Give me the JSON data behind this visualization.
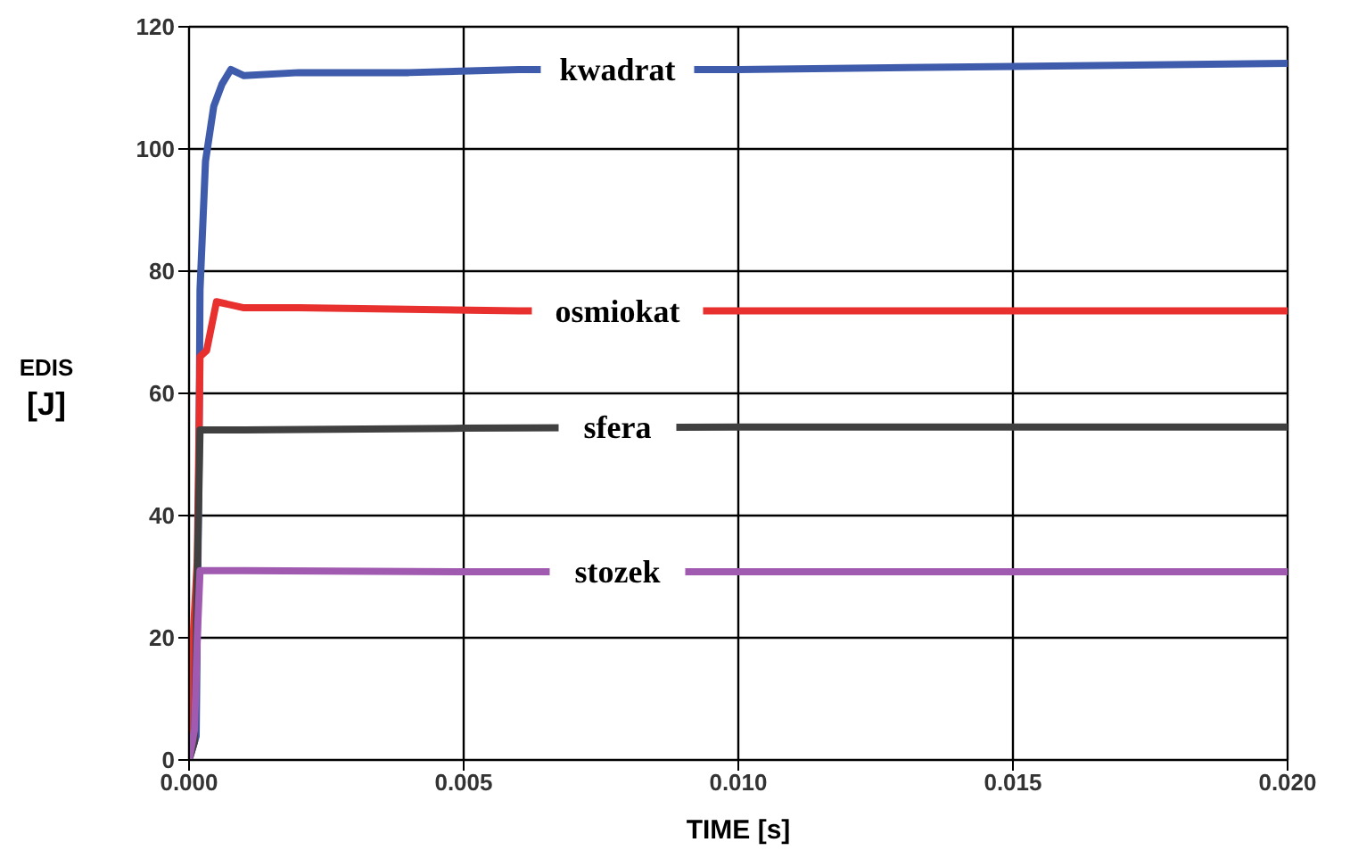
{
  "chart_data": {
    "type": "line",
    "xlabel": "TIME [s]",
    "ylabel": "EDIS [J]",
    "xlim": [
      0,
      0.02
    ],
    "xticks": [
      {
        "value": 0,
        "label": "0.000"
      },
      {
        "value": 0.005,
        "label": "0.005"
      },
      {
        "value": 0.01,
        "label": "0.010"
      },
      {
        "value": 0.015,
        "label": "0.015"
      },
      {
        "value": 0.02,
        "label": "0.020"
      }
    ],
    "ylim": [
      0,
      120
    ],
    "yticks": [
      0,
      20,
      40,
      60,
      80,
      100,
      120
    ],
    "grid": true,
    "legend": false,
    "marker": "none",
    "line_style": "solid",
    "series": [
      {
        "name": "kwadrat",
        "color": "#3f5bab",
        "x": [
          0,
          0.00013,
          0.00018,
          0.0002,
          0.0003,
          0.00045,
          0.0006,
          0.00076,
          0.001,
          0.002,
          0.004,
          0.006,
          0.01,
          0.015,
          0.02
        ],
        "values": [
          0,
          3.9,
          48,
          77,
          98,
          107,
          110.6,
          113,
          112,
          112.5,
          112.5,
          113,
          113,
          113.5,
          114
        ]
      },
      {
        "name": "osmiokat",
        "color": "#e8312f",
        "x": [
          0,
          2e-05,
          0.00015,
          0.0002,
          0.00032,
          0.0005,
          0.001,
          0.002,
          0.006,
          0.01,
          0.02
        ],
        "values": [
          0,
          11,
          32.6,
          66,
          67,
          75,
          74,
          74,
          73.5,
          73.5,
          73.5
        ]
      },
      {
        "name": "sfera",
        "color": "#404040",
        "x": [
          0,
          0.0001,
          0.00015,
          0.0002,
          0.001,
          0.005,
          0.01,
          0.02
        ],
        "values": [
          0,
          3,
          30,
          54,
          54,
          54.3,
          54.5,
          54.5
        ]
      },
      {
        "name": "stozek",
        "color": "#a05ab0",
        "x": [
          0,
          0.0001,
          0.00015,
          0.0002,
          0.001,
          0.005,
          0.01,
          0.02
        ],
        "values": [
          0,
          5,
          20,
          31,
          31,
          30.8,
          30.8,
          30.8
        ]
      }
    ]
  }
}
